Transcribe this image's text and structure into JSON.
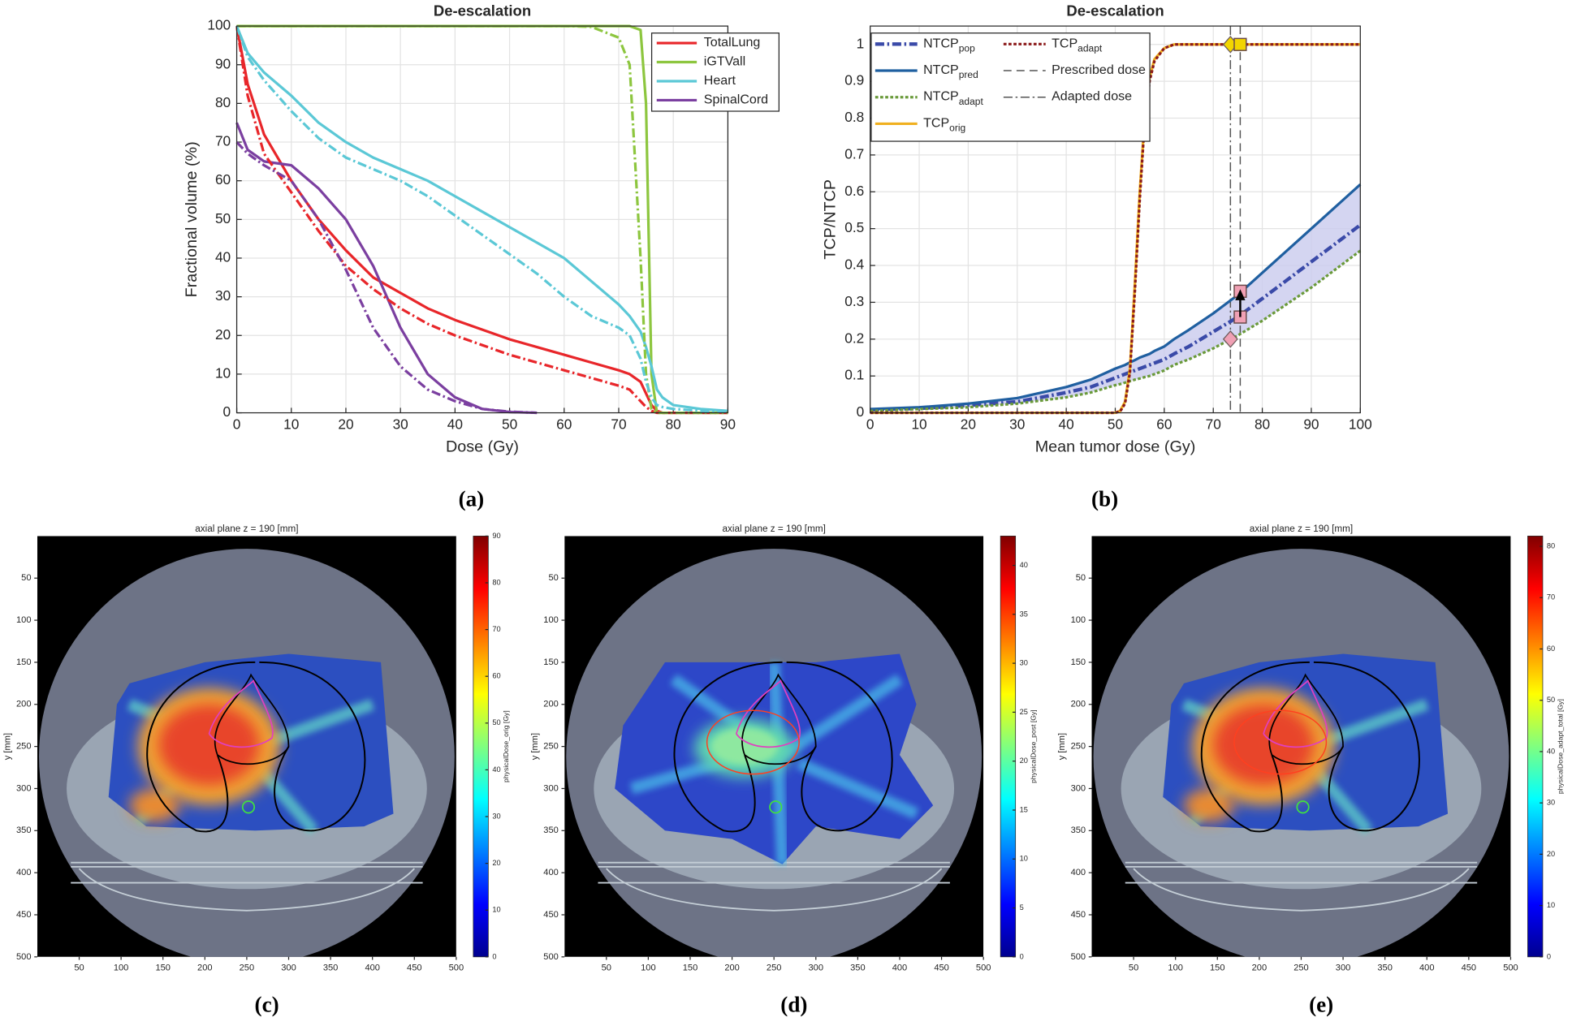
{
  "chart_data": [
    {
      "type": "line",
      "title": "De-escalation",
      "x_label": "Dose (Gy)",
      "y_label": "Fractional volume (%)",
      "caption": "(a)",
      "x": [
        0,
        2,
        5,
        10,
        15,
        20,
        25,
        30,
        35,
        40,
        45,
        50,
        55,
        60,
        65,
        70,
        72,
        74,
        75,
        76,
        77,
        78,
        80,
        85,
        90
      ],
      "series": [
        {
          "name": "TotalLung",
          "color": "#e8262a",
          "dash": "solid",
          "values": [
            100,
            85,
            72,
            60,
            50,
            42,
            35,
            31,
            27,
            24,
            21.5,
            19,
            17,
            15,
            13,
            11,
            10,
            8,
            5,
            2,
            0.5,
            0,
            0,
            0,
            0
          ]
        },
        {
          "name": "iGTVall",
          "color": "#8dc63f",
          "dash": "solid",
          "values": [
            100,
            100,
            100,
            100,
            100,
            100,
            100,
            100,
            100,
            100,
            100,
            100,
            100,
            100,
            100,
            100,
            100,
            99,
            80,
            10,
            0,
            0,
            0,
            0,
            0
          ]
        },
        {
          "name": "Heart",
          "color": "#5bc8d6",
          "dash": "solid",
          "values": [
            100,
            93,
            88,
            82,
            75,
            70,
            66,
            63,
            60,
            56,
            52,
            48,
            44,
            40,
            34,
            28,
            25,
            21,
            17,
            12,
            6,
            4,
            2,
            1,
            0.5
          ]
        },
        {
          "name": "SpinalCord",
          "color": "#7b3fa0",
          "dash": "solid",
          "values": [
            75,
            68,
            65,
            64,
            58,
            50,
            38,
            22,
            10,
            4,
            1,
            0.2,
            0,
            null,
            null,
            null,
            null,
            null,
            null,
            null,
            null,
            null,
            null,
            null,
            null
          ]
        },
        {
          "color": "#e8262a",
          "dash": "dashdot",
          "values": [
            100,
            82,
            67,
            57,
            47,
            38,
            32,
            27,
            23,
            20,
            17.5,
            15,
            13,
            11,
            9,
            7,
            6,
            3,
            1.5,
            0.5,
            0,
            0,
            0,
            0,
            0
          ]
        },
        {
          "color": "#8dc63f",
          "dash": "dashdot",
          "values": [
            100,
            100,
            100,
            100,
            100,
            100,
            100,
            100,
            100,
            100,
            100,
            100,
            100,
            100,
            99.8,
            97,
            90,
            40,
            10,
            1,
            0,
            0,
            0,
            0,
            0
          ]
        },
        {
          "color": "#5bc8d6",
          "dash": "dashdot",
          "values": [
            100,
            92,
            86,
            78,
            71,
            66,
            63,
            60,
            56,
            51,
            46,
            41,
            36,
            30,
            25,
            22,
            20,
            14,
            8,
            4,
            2,
            1.5,
            1,
            0.5,
            0.3
          ]
        },
        {
          "color": "#7b3fa0",
          "dash": "dashdot",
          "values": [
            70,
            67,
            64,
            60,
            50,
            37,
            22,
            12,
            6,
            3,
            1,
            0.3,
            0,
            null,
            null,
            null,
            null,
            null,
            null,
            null,
            null,
            null,
            null,
            null,
            null
          ]
        }
      ],
      "xlim": [
        0,
        90
      ],
      "ylim": [
        0,
        100
      ],
      "xticks": [
        0,
        10,
        20,
        30,
        40,
        50,
        60,
        70,
        80,
        90
      ],
      "yticks": [
        0,
        10,
        20,
        30,
        40,
        50,
        60,
        70,
        80,
        90,
        100
      ],
      "grid": true,
      "legend": "upper right"
    },
    {
      "type": "line",
      "title": "De-escalation",
      "x_label": "Mean tumor dose (Gy)",
      "y_label": "TCP/NTCP",
      "caption": "(b)",
      "x": [
        0,
        10,
        20,
        30,
        40,
        45,
        50,
        51,
        52,
        53,
        54,
        55,
        56,
        57,
        58,
        60,
        62,
        65,
        70,
        75,
        80,
        90,
        100
      ],
      "series": [
        {
          "name": "NTCP",
          "name_sub": "pop",
          "color": "#3a4aa8",
          "dash": "dashdot",
          "values": [
            0.008,
            0.012,
            0.02,
            0.03,
            0.055,
            0.07,
            0.095,
            0.1,
            0.105,
            0.11,
            0.115,
            0.12,
            0.125,
            0.13,
            0.135,
            0.145,
            0.16,
            0.18,
            0.22,
            0.26,
            0.31,
            0.41,
            0.51
          ]
        },
        {
          "name": "NTCP",
          "name_sub": "pred",
          "color": "#1f5fa0",
          "dash": "solid",
          "values": [
            0.01,
            0.015,
            0.025,
            0.04,
            0.07,
            0.09,
            0.12,
            0.125,
            0.13,
            0.137,
            0.143,
            0.15,
            0.155,
            0.16,
            0.168,
            0.18,
            0.2,
            0.225,
            0.27,
            0.32,
            0.38,
            0.5,
            0.62
          ]
        },
        {
          "name": "NTCP",
          "name_sub": "adapt",
          "color": "#6a9a3a",
          "dash": "dotted",
          "values": [
            0.005,
            0.01,
            0.015,
            0.025,
            0.042,
            0.055,
            0.075,
            0.078,
            0.082,
            0.086,
            0.09,
            0.093,
            0.097,
            0.1,
            0.105,
            0.115,
            0.13,
            0.145,
            0.175,
            0.21,
            0.25,
            0.34,
            0.44
          ]
        },
        {
          "name": "TCP",
          "name_sub": "orig",
          "color": "#f0b020",
          "dash": "solid",
          "values": [
            0,
            0,
            0,
            0,
            0,
            0,
            0,
            0.005,
            0.03,
            0.12,
            0.35,
            0.6,
            0.8,
            0.91,
            0.96,
            0.99,
            1,
            1,
            1,
            1,
            1,
            1,
            1
          ]
        },
        {
          "name": "TCP",
          "name_sub": "adapt",
          "color": "#8b1a1a",
          "dash": "dotted",
          "values": [
            0,
            0,
            0,
            0,
            0,
            0,
            0,
            0.004,
            0.025,
            0.11,
            0.33,
            0.58,
            0.79,
            0.9,
            0.955,
            0.99,
            1,
            1,
            1,
            1,
            1,
            1,
            1
          ]
        }
      ],
      "band": {
        "between": [
          1,
          2
        ],
        "color": "#c9cbee"
      },
      "vlines": [
        {
          "name": "Prescribed dose",
          "x": 75.5,
          "dash": "dashed",
          "color": "#555555"
        },
        {
          "name": "Adapted dose",
          "x": 73.5,
          "dash": "dashdot",
          "color": "#555555"
        }
      ],
      "markers": [
        {
          "x": 73.5,
          "y": 1,
          "shape": "diamond",
          "color": "#f2d500"
        },
        {
          "x": 75.5,
          "y": 1,
          "shape": "square",
          "color": "#f2d500"
        },
        {
          "x": 75.5,
          "y": 0.33,
          "shape": "square",
          "color": "#f0a0b4"
        },
        {
          "x": 75.5,
          "y": 0.26,
          "shape": "square",
          "color": "#f0a0b4"
        },
        {
          "x": 73.5,
          "y": 0.2,
          "shape": "diamond",
          "color": "#f0a0b4"
        }
      ],
      "xlim": [
        0,
        100
      ],
      "ylim": [
        0,
        1.05
      ],
      "xticks": [
        0,
        10,
        20,
        30,
        40,
        50,
        60,
        70,
        80,
        90,
        100
      ],
      "yticks": [
        0,
        0.1,
        0.2,
        0.3,
        0.4,
        0.5,
        0.6,
        0.7,
        0.8,
        0.9,
        1
      ],
      "grid": true,
      "legend": "upper left",
      "legend_rows": 4
    },
    {
      "type": "image",
      "title": "axial plane z = 190 [mm]",
      "y_label": "y [mm]",
      "caption": "(c)",
      "xlim": [
        0,
        500
      ],
      "ylim": [
        0,
        500
      ],
      "y_inverted": true,
      "xticks": [
        50,
        100,
        150,
        200,
        250,
        300,
        350,
        400,
        450,
        500
      ],
      "yticks": [
        50,
        100,
        150,
        200,
        250,
        300,
        350,
        400,
        450,
        500
      ],
      "colorbar": {
        "label": "physicalDose_orig [Gy]",
        "lim": [
          0,
          90
        ],
        "ticks": [
          0,
          10,
          20,
          30,
          40,
          50,
          60,
          70,
          80,
          90
        ],
        "colormap": "jet"
      }
    },
    {
      "type": "image",
      "title": "axial plane z = 190 [mm]",
      "y_label": "y [mm]",
      "caption": "(d)",
      "xlim": [
        0,
        500
      ],
      "ylim": [
        0,
        500
      ],
      "y_inverted": true,
      "xticks": [
        50,
        100,
        150,
        200,
        250,
        300,
        350,
        400,
        450,
        500
      ],
      "yticks": [
        50,
        100,
        150,
        200,
        250,
        300,
        350,
        400,
        450,
        500
      ],
      "colorbar": {
        "label": "physicalDose_post [Gy]",
        "lim": [
          0,
          43
        ],
        "ticks": [
          0,
          5,
          10,
          15,
          20,
          25,
          30,
          35,
          40
        ],
        "colormap": "jet"
      }
    },
    {
      "type": "image",
      "title": "axial plane z = 190 [mm]",
      "y_label": "y [mm]",
      "caption": "(e)",
      "xlim": [
        0,
        500
      ],
      "ylim": [
        0,
        500
      ],
      "y_inverted": true,
      "xticks": [
        50,
        100,
        150,
        200,
        250,
        300,
        350,
        400,
        450,
        500
      ],
      "yticks": [
        50,
        100,
        150,
        200,
        250,
        300,
        350,
        400,
        450,
        500
      ],
      "colorbar": {
        "label": "physicalDose_adapt_total [Gy]",
        "lim": [
          0,
          82
        ],
        "ticks": [
          0,
          10,
          20,
          30,
          40,
          50,
          60,
          70,
          80
        ],
        "colormap": "jet"
      }
    }
  ]
}
